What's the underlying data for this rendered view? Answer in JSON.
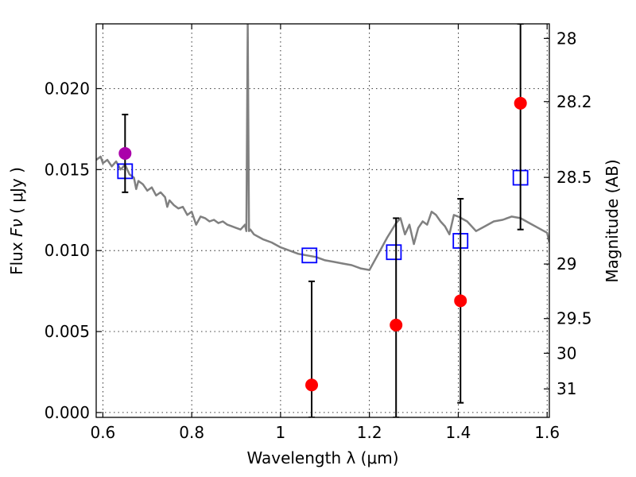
{
  "chart_data": {
    "type": "scatter",
    "xlabel": "Wavelength  λ (μm)",
    "ylabel_text": "Flux  ",
    "ylabel_symbol": "Fν",
    "ylabel_unit": "  ( μJy )",
    "y2label": "Magnitude (AB)",
    "xlim": [
      0.585,
      1.605
    ],
    "ylim": [
      -0.0003,
      0.024
    ],
    "grid": true,
    "x_ticks": [
      {
        "value": 0.6,
        "label": "0.6"
      },
      {
        "value": 0.8,
        "label": "0.8"
      },
      {
        "value": 1.0,
        "label": "1"
      },
      {
        "value": 1.2,
        "label": "1.2"
      },
      {
        "value": 1.4,
        "label": "1.4"
      },
      {
        "value": 1.6,
        "label": "1.6"
      }
    ],
    "y_ticks": [
      {
        "value": 0.0,
        "label": "0.000"
      },
      {
        "value": 0.005,
        "label": "0.005"
      },
      {
        "value": 0.01,
        "label": "0.010"
      },
      {
        "value": 0.015,
        "label": "0.015"
      },
      {
        "value": 0.02,
        "label": "0.020"
      }
    ],
    "y2_ticks": [
      {
        "label": "28",
        "flux": 0.0231
      },
      {
        "label": "28.2",
        "flux": 0.0192
      },
      {
        "label": "28.5",
        "flux": 0.01452
      },
      {
        "label": "29",
        "flux": 0.00917
      },
      {
        "label": "29.5",
        "flux": 0.0058
      },
      {
        "label": "30",
        "flux": 0.00366
      },
      {
        "label": "31",
        "flux": 0.00146
      }
    ],
    "colors": {
      "model": "#808080",
      "model_points": "#0000ff",
      "observed": "#ff0000",
      "highlight": "#aa00aa",
      "errorbar": "#000000"
    },
    "series": [
      {
        "kind": "line",
        "x": [
          0.585,
          0.595,
          0.6,
          0.61,
          0.62,
          0.63,
          0.64,
          0.65,
          0.66,
          0.67,
          0.675,
          0.68,
          0.69,
          0.7,
          0.71,
          0.72,
          0.73,
          0.74,
          0.745,
          0.75,
          0.76,
          0.77,
          0.78,
          0.79,
          0.8,
          0.81,
          0.82,
          0.83,
          0.84,
          0.85,
          0.86,
          0.87,
          0.88,
          0.89,
          0.9,
          0.91,
          0.92,
          0.923,
          0.926,
          0.929,
          0.932,
          0.94,
          0.96,
          0.98,
          1.0,
          1.02,
          1.04,
          1.06,
          1.08,
          1.1,
          1.12,
          1.14,
          1.16,
          1.18,
          1.2,
          1.22,
          1.24,
          1.26,
          1.27,
          1.28,
          1.29,
          1.3,
          1.31,
          1.32,
          1.33,
          1.34,
          1.35,
          1.36,
          1.37,
          1.38,
          1.39,
          1.4,
          1.42,
          1.44,
          1.46,
          1.48,
          1.5,
          1.52,
          1.54,
          1.56,
          1.58,
          1.6,
          1.605
        ],
        "y": [
          0.0156,
          0.0158,
          0.0154,
          0.0156,
          0.0152,
          0.0155,
          0.015,
          0.0153,
          0.0147,
          0.0145,
          0.0138,
          0.0143,
          0.0141,
          0.0137,
          0.0139,
          0.0134,
          0.0136,
          0.0133,
          0.0127,
          0.0131,
          0.0128,
          0.0126,
          0.0127,
          0.0122,
          0.0124,
          0.0116,
          0.0121,
          0.012,
          0.0118,
          0.0119,
          0.0117,
          0.0118,
          0.0116,
          0.0115,
          0.0114,
          0.0113,
          0.0116,
          0.0112,
          0.024,
          0.0112,
          0.0113,
          0.011,
          0.0107,
          0.0105,
          0.0102,
          0.01,
          0.0098,
          0.0097,
          0.0096,
          0.0094,
          0.0093,
          0.0092,
          0.0091,
          0.0089,
          0.0088,
          0.0098,
          0.0108,
          0.0117,
          0.012,
          0.011,
          0.0116,
          0.0104,
          0.0114,
          0.0118,
          0.0116,
          0.0124,
          0.0122,
          0.0118,
          0.0115,
          0.011,
          0.0122,
          0.0121,
          0.0118,
          0.0112,
          0.0115,
          0.0118,
          0.0119,
          0.0121,
          0.012,
          0.0117,
          0.0114,
          0.0111,
          0.0105
        ]
      },
      {
        "kind": "squares",
        "points": [
          {
            "x": 0.65,
            "y": 0.0149
          },
          {
            "x": 1.065,
            "y": 0.0097
          },
          {
            "x": 1.255,
            "y": 0.0099
          },
          {
            "x": 1.405,
            "y": 0.0106
          },
          {
            "x": 1.54,
            "y": 0.0145
          }
        ]
      },
      {
        "kind": "errorbar_points",
        "points": [
          {
            "x": 0.65,
            "y": 0.016,
            "ylow": 0.0136,
            "yhigh": 0.0184,
            "color": "highlight"
          },
          {
            "x": 1.07,
            "y": 0.0017,
            "ylow": -0.0003,
            "yhigh": 0.0081,
            "color": "observed"
          },
          {
            "x": 1.26,
            "y": 0.0054,
            "ylow": -0.0003,
            "yhigh": 0.012,
            "color": "observed"
          },
          {
            "x": 1.405,
            "y": 0.0069,
            "ylow": 0.0006,
            "yhigh": 0.0132,
            "color": "observed"
          },
          {
            "x": 1.54,
            "y": 0.0191,
            "ylow": 0.0113,
            "yhigh": 0.024,
            "color": "observed"
          }
        ]
      }
    ]
  }
}
